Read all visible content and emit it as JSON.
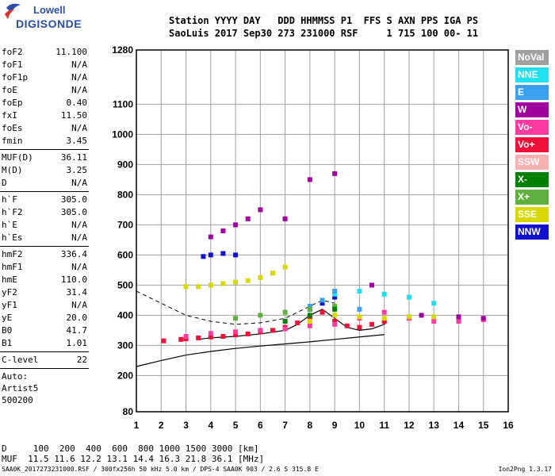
{
  "logo": {
    "line1": "Lowell",
    "line2": "DIGISONDE"
  },
  "header": {
    "line1": "Station YYYY DAY   DDD HHMMSS P1  FFS S AXN PPS IGA PS",
    "line2": "SaoLuis 2017 Sep30 273 231000 RSF     1 715 100 00- 11"
  },
  "params": [
    {
      "label": "foF2",
      "value": "11.100"
    },
    {
      "label": "foF1",
      "value": "N/A"
    },
    {
      "label": "foF1p",
      "value": "N/A"
    },
    {
      "label": "foE",
      "value": "N/A"
    },
    {
      "label": "foEp",
      "value": "0.40"
    },
    {
      "label": "fxI",
      "value": "11.50"
    },
    {
      "label": "foEs",
      "value": "N/A"
    },
    {
      "label": "fmin",
      "value": "3.45"
    },
    {
      "sep": true
    },
    {
      "label": "MUF(D)",
      "value": "36.11"
    },
    {
      "label": "M(D)",
      "value": "3.25"
    },
    {
      "label": "D",
      "value": "N/A"
    },
    {
      "sep": true
    },
    {
      "label": "h`F",
      "value": "305.0"
    },
    {
      "label": "h`F2",
      "value": "305.0"
    },
    {
      "label": "h`E",
      "value": "N/A"
    },
    {
      "label": "h`Es",
      "value": "N/A"
    },
    {
      "sep": true
    },
    {
      "label": "hmF2",
      "value": "336.4"
    },
    {
      "label": "hmF1",
      "value": "N/A"
    },
    {
      "label": "hmE",
      "value": "110.0"
    },
    {
      "label": "yF2",
      "value": "31.4"
    },
    {
      "label": "yF1",
      "value": "N/A"
    },
    {
      "label": "yE",
      "value": "20.0"
    },
    {
      "label": "B0",
      "value": "41.7"
    },
    {
      "label": "B1",
      "value": "1.01"
    },
    {
      "sep": true
    },
    {
      "label": "C-level",
      "value": "22"
    },
    {
      "sep": true
    },
    {
      "text": "Auto:"
    },
    {
      "text": "Artist5"
    },
    {
      "text": "500200"
    }
  ],
  "legend": [
    {
      "label": "NoVal",
      "color": "#a0a0a0"
    },
    {
      "label": "NNE",
      "color": "#20e0f0"
    },
    {
      "label": "E",
      "color": "#3aa0f0"
    },
    {
      "label": "W",
      "color": "#a000a0"
    },
    {
      "label": "Vo-",
      "color": "#ff3aa0"
    },
    {
      "label": "Vo+",
      "color": "#f0103a"
    },
    {
      "label": "SSW",
      "color": "#f8b0b0"
    },
    {
      "label": "X-",
      "color": "#008000"
    },
    {
      "label": "X+",
      "color": "#60b040"
    },
    {
      "label": "SSE",
      "color": "#d8d800"
    },
    {
      "label": "NNW",
      "color": "#1010d0"
    }
  ],
  "bottom": {
    "line1": "D     100  200  400  600  800 1000 1500 3000 [km]",
    "line2": "MUF  11.5 11.6 12.2 13.1 14.4 16.3 21.8 36.1 [MHz]"
  },
  "footer": {
    "left": "SAA0K_2017273231000.RSF / 300fx256h 50 kHz 5.0 km / DPS-4 SAA0K 903 / 2.6 S 315.8 E",
    "right": "Ion2Png 1.3.17"
  },
  "chart_data": {
    "type": "scatter",
    "xlim": [
      1,
      16
    ],
    "ylim": [
      80,
      1280
    ],
    "x_ticks": [
      1,
      2,
      3,
      4,
      5,
      6,
      7,
      8,
      9,
      10,
      11,
      12,
      13,
      14,
      15,
      16
    ],
    "y_ticks": [
      80,
      200,
      300,
      400,
      500,
      600,
      700,
      800,
      900,
      1000,
      1100,
      1280
    ],
    "grid": true,
    "legend_position": "right",
    "series": [
      {
        "name": "Vo+",
        "color": "#f0103a",
        "x": [
          2.1,
          2.8,
          3.0,
          3.5,
          4.0,
          4.5,
          5.0,
          5.5,
          6.0,
          6.5,
          7.0,
          7.5,
          8.0,
          8.5,
          9.0,
          9.5,
          10.0,
          10.5,
          11.0
        ],
        "y": [
          315,
          320,
          322,
          325,
          328,
          330,
          335,
          338,
          345,
          350,
          360,
          375,
          390,
          410,
          380,
          365,
          360,
          370,
          380
        ]
      },
      {
        "name": "Vo-",
        "color": "#ff3aa0",
        "x": [
          3.0,
          4.0,
          5.0,
          6.0,
          7.0,
          8.0,
          9.0,
          10.0,
          11.0,
          12.0,
          13.0,
          14.0,
          15.0
        ],
        "y": [
          330,
          340,
          345,
          350,
          355,
          365,
          370,
          390,
          410,
          390,
          380,
          380,
          385
        ]
      },
      {
        "name": "SSE",
        "color": "#d8d800",
        "x": [
          3.0,
          3.5,
          4.0,
          4.5,
          5.0,
          5.5,
          6.0,
          6.5,
          7.0,
          8.0,
          9.0,
          10.0,
          11.0,
          12.0,
          13.0
        ],
        "y": [
          495,
          495,
          500,
          505,
          510,
          515,
          525,
          540,
          560,
          380,
          400,
          395,
          390,
          395,
          395
        ]
      },
      {
        "name": "W",
        "color": "#a000a0",
        "x": [
          4.0,
          4.5,
          5.0,
          5.5,
          6.0,
          7.0,
          8.0,
          9.0,
          10.5,
          12.5,
          14.0,
          15.0
        ],
        "y": [
          660,
          680,
          700,
          720,
          750,
          720,
          850,
          870,
          500,
          400,
          395,
          390
        ]
      },
      {
        "name": "NNW",
        "color": "#1010d0",
        "x": [
          3.7,
          4.0,
          4.5,
          5.0,
          8.0,
          8.5,
          9.0
        ],
        "y": [
          595,
          600,
          605,
          600,
          420,
          440,
          460
        ]
      },
      {
        "name": "NNE",
        "color": "#20e0f0",
        "x": [
          9.0,
          10.0,
          11.0,
          12.0,
          13.0
        ],
        "y": [
          470,
          480,
          470,
          460,
          440
        ]
      },
      {
        "name": "E",
        "color": "#3aa0f0",
        "x": [
          8.0,
          8.5,
          9.0,
          10.0
        ],
        "y": [
          430,
          450,
          480,
          420
        ]
      },
      {
        "name": "X+",
        "color": "#60b040",
        "x": [
          5.0,
          6.0,
          7.0,
          8.0,
          9.0
        ],
        "y": [
          390,
          400,
          410,
          420,
          430
        ]
      },
      {
        "name": "X-",
        "color": "#008000",
        "x": [
          7.0,
          8.0,
          9.0
        ],
        "y": [
          380,
          400,
          420
        ]
      }
    ],
    "profile_line": {
      "x": [
        1,
        2,
        3,
        4,
        5,
        6,
        7,
        8,
        9,
        10,
        11
      ],
      "y": [
        230,
        250,
        268,
        280,
        290,
        298,
        305,
        312,
        320,
        328,
        336
      ]
    },
    "virtual_height_curve": {
      "x": [
        3.45,
        4,
        5,
        6,
        7,
        7.5,
        8,
        8.5,
        9,
        9.5,
        10,
        10.5,
        11,
        11.1
      ],
      "y": [
        320,
        325,
        330,
        338,
        350,
        370,
        400,
        420,
        390,
        360,
        350,
        355,
        370,
        380
      ]
    },
    "dashed_line": {
      "x": [
        1,
        2,
        3,
        4,
        5,
        6,
        7,
        8,
        8.5,
        9
      ],
      "y": [
        480,
        440,
        400,
        380,
        370,
        375,
        390,
        430,
        450,
        440
      ]
    }
  }
}
